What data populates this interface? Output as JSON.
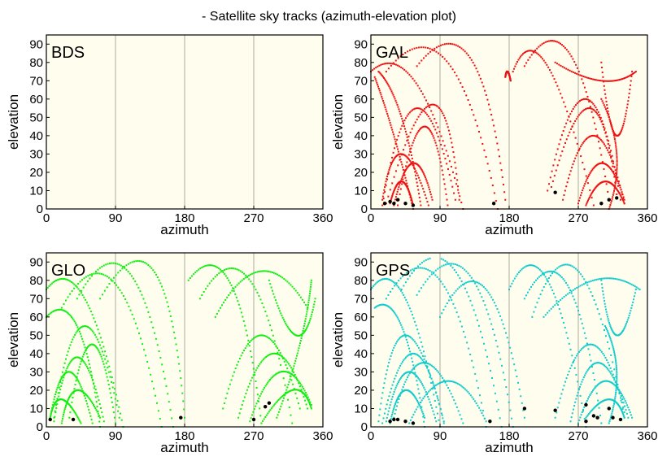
{
  "title": "- Satellite sky tracks (azimuth-elevation plot)",
  "colors": {
    "background": "#fffdee",
    "gal": "#ee1111",
    "glo": "#11ee11",
    "gps": "#11cccc",
    "marker": "#000000",
    "grid": "#999988"
  },
  "chart_data": [
    {
      "type": "scatter",
      "constellation": "BDS",
      "label": "BDS",
      "color": "#ee1111",
      "xlabel": "azimuth",
      "ylabel": "elevation",
      "xlim": [
        0,
        360
      ],
      "ylim": [
        0,
        95
      ],
      "xticks": [
        "0",
        "90",
        "180",
        "270",
        "360"
      ],
      "yticks": [
        "0",
        "10",
        "20",
        "30",
        "40",
        "50",
        "60",
        "70",
        "80",
        "90"
      ],
      "grid": "vertical",
      "tracks": [],
      "current_positions": []
    },
    {
      "type": "scatter",
      "constellation": "GAL",
      "label": "GAL",
      "color": "#ee1111",
      "xlabel": "azimuth",
      "ylabel": "elevation",
      "xlim": [
        0,
        360
      ],
      "ylim": [
        0,
        95
      ],
      "xticks": [
        "0",
        "90",
        "180",
        "270",
        "360"
      ],
      "yticks": [
        "0",
        "10",
        "20",
        "30",
        "40",
        "50",
        "60",
        "70",
        "80",
        "90"
      ],
      "grid": "vertical",
      "tracks": [
        {
          "start": [
            0,
            75
          ],
          "peak": [
            60,
            68
          ],
          "end": [
            120,
            0
          ]
        },
        {
          "start": [
            20,
            75
          ],
          "peak": [
            100,
            80
          ],
          "end": [
            165,
            0
          ]
        },
        {
          "start": [
            175,
            72
          ],
          "peak": [
            178,
            75
          ],
          "end": [
            182,
            70
          ]
        },
        {
          "start": [
            60,
            78
          ],
          "peak": [
            130,
            82
          ],
          "end": [
            175,
            5
          ]
        },
        {
          "start": [
            15,
            2
          ],
          "peak": [
            60,
            55
          ],
          "end": [
            110,
            5
          ]
        },
        {
          "start": [
            20,
            3
          ],
          "peak": [
            80,
            57
          ],
          "end": [
            115,
            5
          ]
        },
        {
          "start": [
            35,
            2
          ],
          "peak": [
            70,
            45
          ],
          "end": [
            100,
            2
          ]
        },
        {
          "start": [
            15,
            5
          ],
          "peak": [
            40,
            30
          ],
          "end": [
            75,
            2
          ]
        },
        {
          "start": [
            25,
            3
          ],
          "peak": [
            40,
            15
          ],
          "end": [
            55,
            2
          ]
        },
        {
          "start": [
            30,
            2
          ],
          "peak": [
            55,
            25
          ],
          "end": [
            80,
            5
          ]
        },
        {
          "start": [
            10,
            75
          ],
          "peak": [
            40,
            50
          ],
          "end": [
            65,
            2
          ]
        },
        {
          "start": [
            5,
            72
          ],
          "peak": [
            30,
            40
          ],
          "end": [
            55,
            0
          ]
        },
        {
          "start": [
            200,
            78
          ],
          "peak": [
            260,
            84
          ],
          "end": [
            310,
            5
          ]
        },
        {
          "start": [
            185,
            75
          ],
          "peak": [
            230,
            78
          ],
          "end": [
            290,
            2
          ]
        },
        {
          "start": [
            240,
            80
          ],
          "peak": [
            300,
            70
          ],
          "end": [
            345,
            75
          ]
        },
        {
          "start": [
            230,
            10
          ],
          "peak": [
            280,
            60
          ],
          "end": [
            325,
            5
          ]
        },
        {
          "start": [
            235,
            12
          ],
          "peak": [
            285,
            55
          ],
          "end": [
            320,
            8
          ]
        },
        {
          "start": [
            250,
            5
          ],
          "peak": [
            290,
            40
          ],
          "end": [
            330,
            3
          ]
        },
        {
          "start": [
            270,
            3
          ],
          "peak": [
            300,
            25
          ],
          "end": [
            330,
            5
          ]
        },
        {
          "start": [
            280,
            2
          ],
          "peak": [
            305,
            15
          ],
          "end": [
            330,
            3
          ]
        },
        {
          "start": [
            300,
            80
          ],
          "peak": [
            320,
            40
          ],
          "end": [
            340,
            75
          ]
        },
        {
          "start": [
            310,
            0
          ],
          "peak": [
            320,
            30
          ],
          "end": [
            300,
            60
          ]
        }
      ],
      "current_positions": [
        [
          18,
          3
        ],
        [
          25,
          4
        ],
        [
          30,
          3
        ],
        [
          35,
          5
        ],
        [
          45,
          3
        ],
        [
          55,
          2
        ],
        [
          160,
          3
        ],
        [
          240,
          9
        ],
        [
          300,
          3
        ],
        [
          310,
          5
        ],
        [
          320,
          6
        ]
      ]
    },
    {
      "type": "scatter",
      "constellation": "GLO",
      "label": "GLO",
      "color": "#11ee11",
      "xlabel": "azimuth",
      "ylabel": "elevation",
      "xlim": [
        0,
        360
      ],
      "ylim": [
        0,
        95
      ],
      "xticks": [
        "0",
        "90",
        "180",
        "270",
        "360"
      ],
      "yticks": [
        "0",
        "10",
        "20",
        "30",
        "40",
        "50",
        "60",
        "70",
        "80",
        "90"
      ],
      "grid": "vertical",
      "tracks": [
        {
          "start": [
            0,
            75
          ],
          "peak": [
            50,
            70
          ],
          "end": [
            100,
            0
          ]
        },
        {
          "start": [
            0,
            60
          ],
          "peak": [
            40,
            55
          ],
          "end": [
            70,
            0
          ]
        },
        {
          "start": [
            20,
            65
          ],
          "peak": [
            90,
            78
          ],
          "end": [
            150,
            0
          ]
        },
        {
          "start": [
            40,
            70
          ],
          "peak": [
            110,
            83
          ],
          "end": [
            165,
            0
          ]
        },
        {
          "start": [
            70,
            70
          ],
          "peak": [
            140,
            85
          ],
          "end": [
            180,
            5
          ]
        },
        {
          "start": [
            10,
            5
          ],
          "peak": [
            50,
            55
          ],
          "end": [
            95,
            5
          ]
        },
        {
          "start": [
            10,
            3
          ],
          "peak": [
            40,
            38
          ],
          "end": [
            75,
            3
          ]
        },
        {
          "start": [
            5,
            5
          ],
          "peak": [
            30,
            30
          ],
          "end": [
            60,
            2
          ]
        },
        {
          "start": [
            5,
            5
          ],
          "peak": [
            20,
            15
          ],
          "end": [
            45,
            2
          ]
        },
        {
          "start": [
            20,
            2
          ],
          "peak": [
            40,
            20
          ],
          "end": [
            70,
            5
          ]
        },
        {
          "start": [
            30,
            5
          ],
          "peak": [
            60,
            45
          ],
          "end": [
            90,
            2
          ]
        },
        {
          "start": [
            185,
            80
          ],
          "peak": [
            240,
            78
          ],
          "end": [
            280,
            2
          ]
        },
        {
          "start": [
            200,
            70
          ],
          "peak": [
            265,
            80
          ],
          "end": [
            320,
            2
          ]
        },
        {
          "start": [
            220,
            60
          ],
          "peak": [
            280,
            85
          ],
          "end": [
            340,
            65
          ]
        },
        {
          "start": [
            230,
            10
          ],
          "peak": [
            280,
            50
          ],
          "end": [
            330,
            10
          ]
        },
        {
          "start": [
            250,
            5
          ],
          "peak": [
            295,
            40
          ],
          "end": [
            340,
            10
          ]
        },
        {
          "start": [
            265,
            3
          ],
          "peak": [
            305,
            30
          ],
          "end": [
            345,
            12
          ]
        },
        {
          "start": [
            280,
            2
          ],
          "peak": [
            320,
            20
          ],
          "end": [
            345,
            10
          ]
        },
        {
          "start": [
            290,
            80
          ],
          "peak": [
            325,
            50
          ],
          "end": [
            350,
            70
          ]
        },
        {
          "start": [
            300,
            5
          ],
          "peak": [
            330,
            45
          ],
          "end": [
            345,
            80
          ]
        }
      ],
      "current_positions": [
        [
          5,
          4
        ],
        [
          35,
          4
        ],
        [
          175,
          5
        ],
        [
          270,
          4
        ],
        [
          285,
          11
        ],
        [
          290,
          13
        ]
      ]
    },
    {
      "type": "scatter",
      "constellation": "GPS",
      "label": "GPS",
      "color": "#11cccc",
      "xlabel": "azimuth",
      "ylabel": "elevation",
      "xlim": [
        0,
        360
      ],
      "ylim": [
        0,
        95
      ],
      "xticks": [
        "0",
        "90",
        "180",
        "270",
        "360"
      ],
      "yticks": [
        "0",
        "10",
        "20",
        "30",
        "40",
        "50",
        "60",
        "70",
        "80",
        "90"
      ],
      "grid": "vertical",
      "tracks": [
        {
          "start": [
            0,
            75
          ],
          "peak": [
            45,
            70
          ],
          "end": [
            90,
            0
          ]
        },
        {
          "start": [
            5,
            65
          ],
          "peak": [
            40,
            55
          ],
          "end": [
            70,
            0
          ]
        },
        {
          "start": [
            20,
            70
          ],
          "peak": [
            90,
            80
          ],
          "end": [
            150,
            0
          ]
        },
        {
          "start": [
            40,
            75
          ],
          "peak": [
            110,
            85
          ],
          "end": [
            170,
            0
          ]
        },
        {
          "start": [
            60,
            72
          ],
          "peak": [
            130,
            82
          ],
          "end": [
            185,
            0
          ]
        },
        {
          "start": [
            90,
            60
          ],
          "peak": [
            150,
            75
          ],
          "end": [
            200,
            5
          ]
        },
        {
          "start": [
            10,
            3
          ],
          "peak": [
            45,
            50
          ],
          "end": [
            95,
            3
          ]
        },
        {
          "start": [
            15,
            2
          ],
          "peak": [
            55,
            40
          ],
          "end": [
            95,
            2
          ]
        },
        {
          "start": [
            20,
            3
          ],
          "peak": [
            50,
            30
          ],
          "end": [
            85,
            3
          ]
        },
        {
          "start": [
            25,
            2
          ],
          "peak": [
            45,
            20
          ],
          "end": [
            70,
            5
          ]
        },
        {
          "start": [
            30,
            5
          ],
          "peak": [
            70,
            35
          ],
          "end": [
            120,
            2
          ]
        },
        {
          "start": [
            50,
            2
          ],
          "peak": [
            100,
            25
          ],
          "end": [
            150,
            3
          ]
        },
        {
          "start": [
            180,
            75
          ],
          "peak": [
            230,
            80
          ],
          "end": [
            280,
            0
          ]
        },
        {
          "start": [
            200,
            70
          ],
          "peak": [
            255,
            78
          ],
          "end": [
            300,
            2
          ]
        },
        {
          "start": [
            210,
            60
          ],
          "peak": [
            270,
            85
          ],
          "end": [
            330,
            5
          ]
        },
        {
          "start": [
            225,
            60
          ],
          "peak": [
            290,
            80
          ],
          "end": [
            350,
            75
          ]
        },
        {
          "start": [
            240,
            5
          ],
          "peak": [
            285,
            45
          ],
          "end": [
            330,
            8
          ]
        },
        {
          "start": [
            260,
            3
          ],
          "peak": [
            295,
            35
          ],
          "end": [
            335,
            5
          ]
        },
        {
          "start": [
            270,
            2
          ],
          "peak": [
            305,
            25
          ],
          "end": [
            340,
            5
          ]
        },
        {
          "start": [
            280,
            5
          ],
          "peak": [
            310,
            15
          ],
          "end": [
            330,
            5
          ]
        },
        {
          "start": [
            300,
            80
          ],
          "peak": [
            320,
            50
          ],
          "end": [
            345,
            75
          ]
        },
        {
          "start": [
            310,
            2
          ],
          "peak": [
            320,
            30
          ],
          "end": [
            305,
            55
          ]
        }
      ],
      "current_positions": [
        [
          25,
          3
        ],
        [
          30,
          4
        ],
        [
          35,
          4
        ],
        [
          45,
          3
        ],
        [
          55,
          2
        ],
        [
          155,
          3
        ],
        [
          200,
          10
        ],
        [
          240,
          9
        ],
        [
          280,
          12
        ],
        [
          290,
          6
        ],
        [
          295,
          5
        ],
        [
          310,
          10
        ],
        [
          315,
          5
        ],
        [
          325,
          4
        ],
        [
          280,
          3
        ]
      ]
    }
  ]
}
